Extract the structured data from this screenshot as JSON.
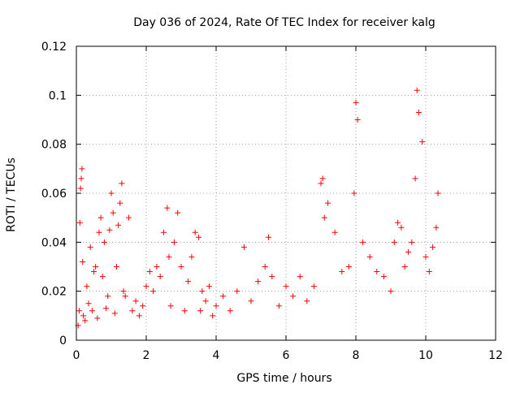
{
  "chart_data": {
    "type": "scatter",
    "title": "Day 036 of 2024, Rate Of TEC Index for receiver kalg",
    "xlabel": "GPS time / hours",
    "ylabel": "ROTI / TECUs",
    "xlim": [
      0,
      12
    ],
    "ylim": [
      0,
      0.12
    ],
    "xticks": [
      "0",
      "2",
      "4",
      "6",
      "8",
      "10",
      "12"
    ],
    "yticks": [
      "0",
      "0.02",
      "0.04",
      "0.06",
      "0.08",
      "0.1",
      "0.12"
    ],
    "grid": true,
    "marker": "+",
    "color": "#ff0000",
    "series": [
      {
        "name": "ROTI",
        "x": [
          0.05,
          0.08,
          0.1,
          0.12,
          0.14,
          0.16,
          0.18,
          0.2,
          0.25,
          0.3,
          0.35,
          0.4,
          0.45,
          0.5,
          0.55,
          0.6,
          0.65,
          0.7,
          0.75,
          0.8,
          0.85,
          0.9,
          0.95,
          1.0,
          1.05,
          1.1,
          1.15,
          1.2,
          1.25,
          1.3,
          1.35,
          1.4,
          1.5,
          1.6,
          1.7,
          1.8,
          1.9,
          2.0,
          2.1,
          2.2,
          2.3,
          2.4,
          2.5,
          2.6,
          2.65,
          2.7,
          2.8,
          2.9,
          3.0,
          3.1,
          3.2,
          3.3,
          3.4,
          3.5,
          3.55,
          3.6,
          3.7,
          3.8,
          3.9,
          4.0,
          4.2,
          4.4,
          4.6,
          4.8,
          5.0,
          5.2,
          5.4,
          5.5,
          5.6,
          5.8,
          6.0,
          6.2,
          6.4,
          6.6,
          6.8,
          7.0,
          7.05,
          7.1,
          7.2,
          7.4,
          7.6,
          7.8,
          7.95,
          8.0,
          8.05,
          8.2,
          8.4,
          8.6,
          8.8,
          9.0,
          9.1,
          9.2,
          9.3,
          9.4,
          9.5,
          9.6,
          9.7,
          9.75,
          9.8,
          9.9,
          10.0,
          10.1,
          10.2,
          10.3,
          10.35
        ],
        "y": [
          0.006,
          0.012,
          0.048,
          0.062,
          0.066,
          0.07,
          0.032,
          0.01,
          0.008,
          0.022,
          0.015,
          0.038,
          0.012,
          0.028,
          0.03,
          0.009,
          0.044,
          0.05,
          0.026,
          0.04,
          0.013,
          0.018,
          0.045,
          0.06,
          0.052,
          0.011,
          0.03,
          0.047,
          0.056,
          0.064,
          0.02,
          0.018,
          0.05,
          0.012,
          0.016,
          0.01,
          0.014,
          0.022,
          0.028,
          0.02,
          0.03,
          0.026,
          0.044,
          0.054,
          0.034,
          0.014,
          0.04,
          0.052,
          0.03,
          0.012,
          0.024,
          0.034,
          0.044,
          0.042,
          0.012,
          0.02,
          0.016,
          0.022,
          0.01,
          0.014,
          0.018,
          0.012,
          0.02,
          0.038,
          0.016,
          0.024,
          0.03,
          0.042,
          0.026,
          0.014,
          0.022,
          0.018,
          0.026,
          0.016,
          0.022,
          0.064,
          0.066,
          0.05,
          0.056,
          0.044,
          0.028,
          0.03,
          0.06,
          0.097,
          0.09,
          0.04,
          0.034,
          0.028,
          0.026,
          0.02,
          0.04,
          0.048,
          0.046,
          0.03,
          0.036,
          0.04,
          0.066,
          0.102,
          0.093,
          0.081,
          0.034,
          0.028,
          0.038,
          0.046,
          0.06
        ]
      }
    ]
  }
}
